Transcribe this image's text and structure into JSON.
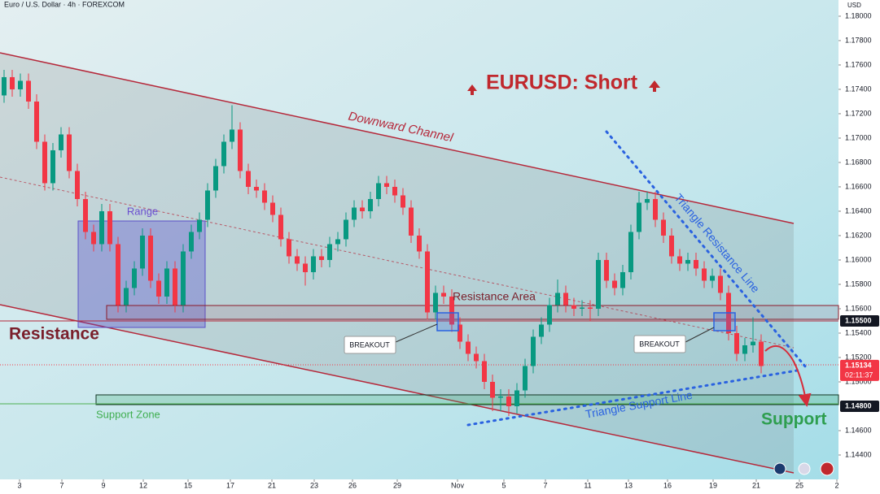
{
  "chart_data": {
    "type": "candlestick",
    "header": "Euro / U.S. Dollar · 4h · FOREXCOM",
    "currency": "USD",
    "title": "EURUSD: Short",
    "up_color": "#089981",
    "down_color": "#f23645",
    "open": [
      1.1735,
      1.175,
      1.174,
      1.1747,
      1.173,
      1.1697,
      1.1663,
      1.169,
      1.1703,
      1.1673,
      1.165,
      1.1623,
      1.1613,
      1.164,
      1.1613,
      1.1563,
      1.1577,
      1.1593,
      1.162,
      1.1583,
      1.157,
      1.1593,
      1.1563,
      1.1607,
      1.1623,
      1.1633,
      1.1657,
      1.1677,
      1.1697,
      1.1707,
      1.1673,
      1.166,
      1.1657,
      1.1647,
      1.1637,
      1.1617,
      1.1603,
      1.1597,
      1.159,
      1.1603,
      1.16,
      1.1613,
      1.1617,
      1.1633,
      1.1643,
      1.164,
      1.165,
      1.1663,
      1.166,
      1.1653,
      1.1643,
      1.162,
      1.1607,
      1.1557,
      1.1573,
      1.157,
      1.1547,
      1.1533,
      1.1523,
      1.1517,
      1.15,
      1.1487,
      1.1488,
      1.148,
      1.1493,
      1.1513,
      1.1537,
      1.1547,
      1.1563,
      1.1573,
      1.1563,
      1.156,
      1.1561,
      1.156,
      1.16,
      1.1583,
      1.1577,
      1.159,
      1.1623,
      1.1647,
      1.165,
      1.1633,
      1.162,
      1.1603,
      1.1597,
      1.16,
      1.1593,
      1.1583,
      1.1587,
      1.1573,
      1.154,
      1.1523,
      1.153,
      1.1533
    ],
    "high": [
      1.1756,
      1.1756,
      1.1753,
      1.1753,
      1.1736,
      1.1703,
      1.1696,
      1.1709,
      1.1709,
      1.1679,
      1.1656,
      1.1629,
      1.1646,
      1.1646,
      1.1619,
      1.1583,
      1.1599,
      1.1626,
      1.1626,
      1.1589,
      1.1599,
      1.1599,
      1.1613,
      1.1629,
      1.1639,
      1.1663,
      1.1683,
      1.1703,
      1.1727,
      1.1713,
      1.1679,
      1.1666,
      1.1663,
      1.1653,
      1.1643,
      1.1623,
      1.1609,
      1.1603,
      1.1609,
      1.1609,
      1.1619,
      1.1623,
      1.1639,
      1.1649,
      1.1649,
      1.1656,
      1.1669,
      1.1669,
      1.1666,
      1.1659,
      1.1649,
      1.1626,
      1.1613,
      1.1579,
      1.1579,
      1.1576,
      1.1553,
      1.1539,
      1.1529,
      1.1523,
      1.1506,
      1.1494,
      1.1494,
      1.1499,
      1.1519,
      1.1543,
      1.1553,
      1.1569,
      1.1584,
      1.1579,
      1.1569,
      1.1567,
      1.1567,
      1.1606,
      1.1606,
      1.1589,
      1.1596,
      1.1629,
      1.1656,
      1.1656,
      1.1656,
      1.1639,
      1.1626,
      1.1609,
      1.1606,
      1.1606,
      1.1599,
      1.1593,
      1.1593,
      1.1579,
      1.1546,
      1.1536,
      1.1553,
      1.1539
    ],
    "low": [
      1.1729,
      1.1734,
      1.1734,
      1.1724,
      1.1691,
      1.1657,
      1.1657,
      1.1684,
      1.1667,
      1.1644,
      1.1617,
      1.1607,
      1.1607,
      1.1607,
      1.1557,
      1.1557,
      1.1571,
      1.1587,
      1.1577,
      1.1564,
      1.1564,
      1.1557,
      1.1557,
      1.1601,
      1.1617,
      1.1627,
      1.1651,
      1.1671,
      1.1691,
      1.1667,
      1.1654,
      1.1651,
      1.1641,
      1.1631,
      1.1611,
      1.1597,
      1.1591,
      1.1579,
      1.1584,
      1.1594,
      1.1594,
      1.1607,
      1.1611,
      1.1627,
      1.1634,
      1.1634,
      1.1644,
      1.1654,
      1.1647,
      1.1637,
      1.1614,
      1.1601,
      1.1551,
      1.1551,
      1.1564,
      1.1541,
      1.1527,
      1.1517,
      1.1511,
      1.1494,
      1.1476,
      1.1476,
      1.1472,
      1.1474,
      1.1487,
      1.1507,
      1.1531,
      1.1541,
      1.1557,
      1.1557,
      1.1554,
      1.1554,
      1.155,
      1.1554,
      1.1577,
      1.1571,
      1.1571,
      1.1584,
      1.1617,
      1.1641,
      1.1627,
      1.1614,
      1.1597,
      1.1591,
      1.1591,
      1.1587,
      1.1577,
      1.1577,
      1.1567,
      1.1534,
      1.1517,
      1.1517,
      1.1524,
      1.1507
    ],
    "close": [
      1.175,
      1.174,
      1.1747,
      1.173,
      1.1697,
      1.1663,
      1.169,
      1.1703,
      1.1673,
      1.165,
      1.1623,
      1.1613,
      1.164,
      1.1613,
      1.1563,
      1.1577,
      1.1593,
      1.162,
      1.1583,
      1.157,
      1.1593,
      1.1563,
      1.1607,
      1.1623,
      1.1633,
      1.1657,
      1.1677,
      1.1697,
      1.1707,
      1.1673,
      1.166,
      1.1657,
      1.1647,
      1.1637,
      1.1617,
      1.1603,
      1.1597,
      1.159,
      1.1603,
      1.16,
      1.1613,
      1.1617,
      1.1633,
      1.1643,
      1.164,
      1.165,
      1.1663,
      1.166,
      1.1653,
      1.1643,
      1.162,
      1.1607,
      1.1557,
      1.1573,
      1.157,
      1.1547,
      1.1533,
      1.1523,
      1.1517,
      1.15,
      1.1487,
      1.1488,
      1.148,
      1.1493,
      1.1513,
      1.1537,
      1.1547,
      1.1563,
      1.1573,
      1.1563,
      1.156,
      1.1561,
      1.156,
      1.16,
      1.1583,
      1.1577,
      1.159,
      1.1623,
      1.1647,
      1.165,
      1.1633,
      1.162,
      1.1603,
      1.1597,
      1.16,
      1.1593,
      1.1583,
      1.1587,
      1.1573,
      1.154,
      1.1523,
      1.153,
      1.1533,
      1.1513
    ],
    "xlim": [
      -0.5,
      102.5
    ],
    "xticks": [
      {
        "value": 1.9,
        "label": "3"
      },
      {
        "value": 7.1,
        "label": "7"
      },
      {
        "value": 12.2,
        "label": "9"
      },
      {
        "value": 17.1,
        "label": "12"
      },
      {
        "value": 22.6,
        "label": "15"
      },
      {
        "value": 27.8,
        "label": "17"
      },
      {
        "value": 32.9,
        "label": "21"
      },
      {
        "value": 38.1,
        "label": "23"
      },
      {
        "value": 42.8,
        "label": "26"
      },
      {
        "value": 48.3,
        "label": "29"
      },
      {
        "value": 55.7,
        "label": "Nov"
      },
      {
        "value": 61.4,
        "label": "5"
      },
      {
        "value": 66.5,
        "label": "7"
      },
      {
        "value": 71.7,
        "label": "11"
      },
      {
        "value": 76.7,
        "label": "13"
      },
      {
        "value": 81.5,
        "label": "16"
      },
      {
        "value": 87.1,
        "label": "19"
      },
      {
        "value": 92.4,
        "label": "21"
      },
      {
        "value": 97.7,
        "label": "25"
      },
      {
        "value": 102.3,
        "label": "2"
      }
    ],
    "ylim": [
      1.142,
      1.18133
    ],
    "yticks": [
      {
        "value": 1.18,
        "label": "1.18000"
      },
      {
        "value": 1.178,
        "label": "1.17800"
      },
      {
        "value": 1.176,
        "label": "1.17600"
      },
      {
        "value": 1.174,
        "label": "1.17400"
      },
      {
        "value": 1.172,
        "label": "1.17200"
      },
      {
        "value": 1.17,
        "label": "1.17000"
      },
      {
        "value": 1.168,
        "label": "1.16800"
      },
      {
        "value": 1.166,
        "label": "1.16600"
      },
      {
        "value": 1.164,
        "label": "1.16400"
      },
      {
        "value": 1.162,
        "label": "1.16200"
      },
      {
        "value": 1.16,
        "label": "1.16000"
      },
      {
        "value": 1.158,
        "label": "1.15800"
      },
      {
        "value": 1.156,
        "label": "1.15600"
      },
      {
        "value": 1.154,
        "label": "1.15400"
      },
      {
        "value": 1.152,
        "label": "1.15200"
      },
      {
        "value": 1.15,
        "label": "1.15000"
      },
      {
        "value": 1.146,
        "label": "1.14600"
      },
      {
        "value": 1.144,
        "label": "1.14400"
      }
    ],
    "grid": false,
    "price_labels": [
      {
        "value": 1.155,
        "label": "1.15500",
        "color": "#131722"
      },
      {
        "value": 1.15134,
        "label": "1.15134",
        "color": "#f23645"
      },
      {
        "value": 1.148,
        "label": "1.14800",
        "color": "#131722"
      }
    ],
    "countdown": "02:11:37",
    "annotations": {
      "downward_channel": "Downward Channel",
      "range": "Range",
      "resistance": "Resistance",
      "resistance_area": "Resistance Area",
      "breakout_1": "BREAKOUT",
      "breakout_2": "BREAKOUT",
      "triangle_resistance": "Triangle Resistance Line",
      "support_zone": "Support Zone",
      "triangle_support": "Triangle Support Line",
      "support": "Support"
    }
  }
}
